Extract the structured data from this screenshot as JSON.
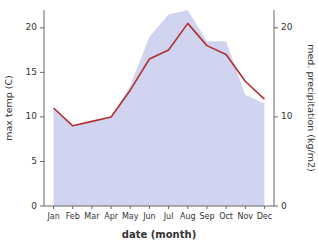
{
  "chart_data": {
    "type": "line",
    "categories": [
      "Jan",
      "Feb",
      "Mar",
      "Apr",
      "May",
      "Jun",
      "Jul",
      "Aug",
      "Sep",
      "Oct",
      "Nov",
      "Dec"
    ],
    "series": [
      {
        "type": "area",
        "color": "#b0b8e8",
        "values": [
          11.0,
          9.0,
          9.5,
          10.0,
          13.5,
          19.0,
          21.5,
          22.0,
          18.5,
          18.5,
          12.5,
          11.5
        ]
      },
      {
        "type": "line",
        "color": "#b03030",
        "axis": "y2",
        "values": [
          11.0,
          9.0,
          9.5,
          10.0,
          13.0,
          16.5,
          17.5,
          20.5,
          18.0,
          17.0,
          14.0,
          12.0
        ]
      }
    ],
    "xlabel": "date (month)",
    "ylabel": "max temp (C)",
    "y2label": "med. precipitation (kg/m2)",
    "ylim": [
      0,
      22
    ],
    "yticks": [
      0,
      5,
      10,
      15,
      20
    ],
    "y2lim": [
      0,
      22
    ],
    "y2ticks": [
      0,
      10,
      20
    ],
    "grid": false
  }
}
